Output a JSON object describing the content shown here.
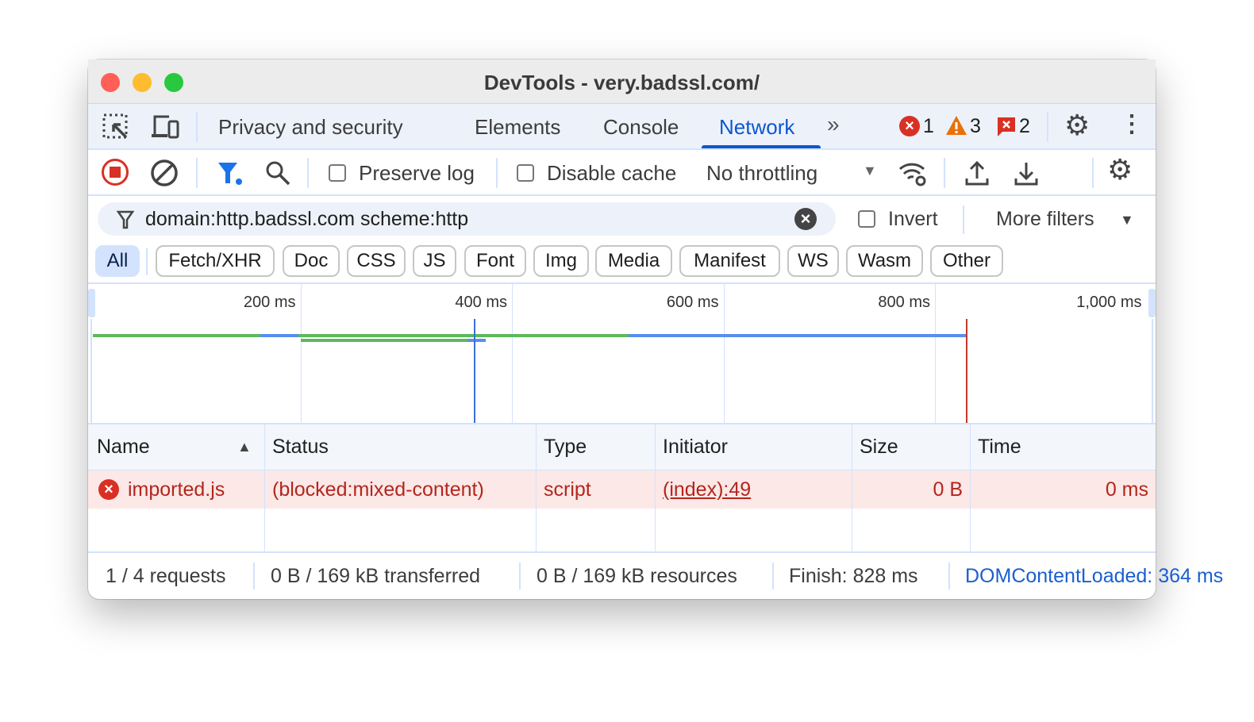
{
  "window": {
    "title": "DevTools - very.badssl.com/"
  },
  "tabs": {
    "items": [
      {
        "label": "Privacy and security"
      },
      {
        "label": "Elements"
      },
      {
        "label": "Console"
      },
      {
        "label": "Network"
      }
    ],
    "active": "Network",
    "errors": "1",
    "warnings": "3",
    "issues": "2"
  },
  "toolbar": {
    "preserve_log": "Preserve log",
    "disable_cache": "Disable cache",
    "throttling": "No throttling",
    "preserve_checked": false,
    "disable_checked": false
  },
  "filter": {
    "value": "domain:http.badssl.com scheme:http",
    "invert": "Invert",
    "more_filters": "More filters"
  },
  "types": [
    "All",
    "Fetch/XHR",
    "Doc",
    "CSS",
    "JS",
    "Font",
    "Img",
    "Media",
    "Manifest",
    "WS",
    "Wasm",
    "Other"
  ],
  "overview": {
    "ticks": [
      "200 ms",
      "400 ms",
      "600 ms",
      "800 ms",
      "1,000 ms"
    ],
    "dom_content_loaded_ms": 364,
    "load_ms": 829,
    "colors": {
      "dcl": "#3b6fd8",
      "load": "#c0392b",
      "green": "#5cb85c",
      "blue": "#5b8def"
    }
  },
  "table": {
    "headers": [
      "Name",
      "Status",
      "Type",
      "Initiator",
      "Size",
      "Time"
    ],
    "sort": "Name ascending",
    "rows": [
      {
        "name": "imported.js",
        "status": "(blocked:mixed-content)",
        "type": "script",
        "initiator": "(index):49",
        "size": "0 B",
        "time": "0 ms"
      }
    ]
  },
  "footer": {
    "requests": "1 / 4 requests",
    "transferred": "0 B / 169 kB transferred",
    "resources": "0 B / 169 kB resources",
    "finish": "Finish: 828 ms",
    "dcl": "DOMContentLoaded: 364 ms"
  }
}
